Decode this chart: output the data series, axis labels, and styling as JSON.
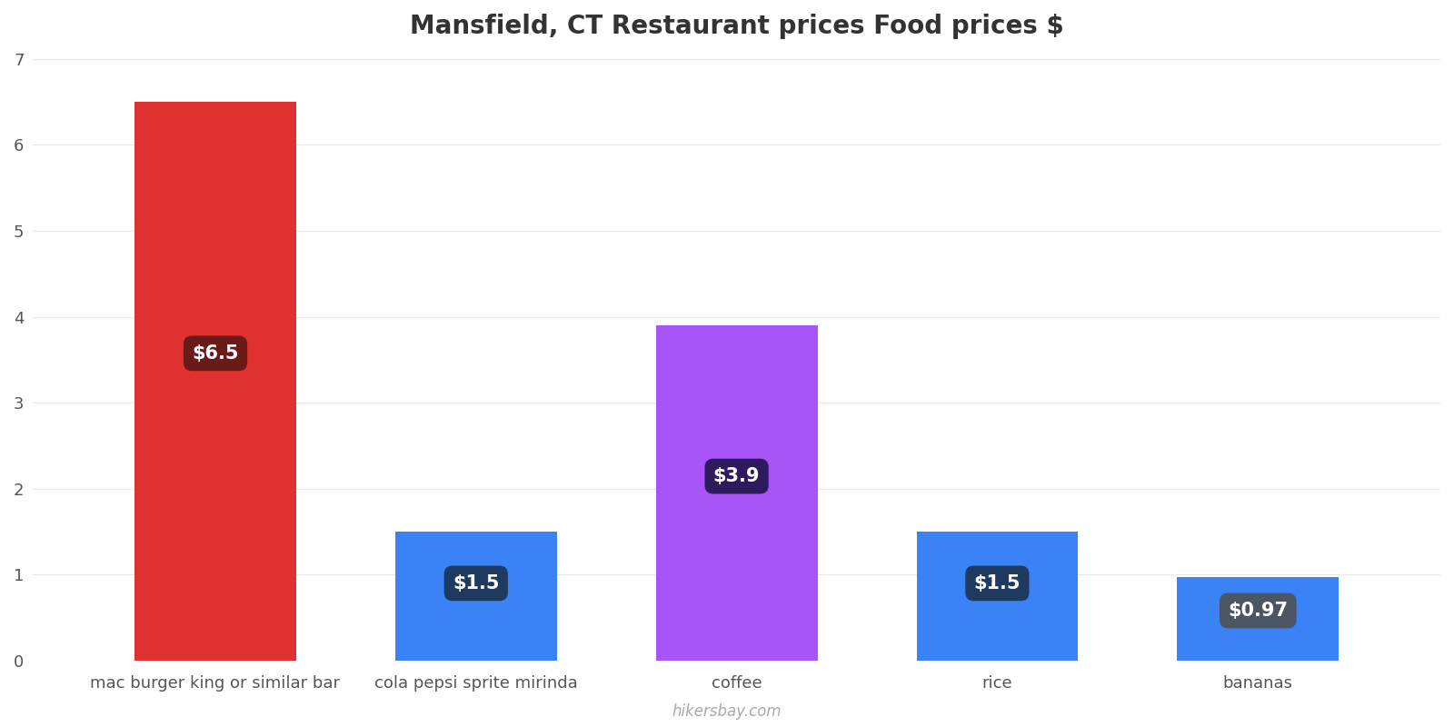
{
  "title": "Mansfield, CT Restaurant prices Food prices $",
  "categories": [
    "mac burger king or similar bar",
    "cola pepsi sprite mirinda",
    "coffee",
    "rice",
    "bananas"
  ],
  "values": [
    6.5,
    1.5,
    3.9,
    1.5,
    0.97
  ],
  "bar_colors": [
    "#e03131",
    "#3b82f6",
    "#a855f7",
    "#3b82f6",
    "#3b82f6"
  ],
  "label_texts": [
    "$6.5",
    "$1.5",
    "$3.9",
    "$1.5",
    "$0.97"
  ],
  "label_bg_colors": [
    "#6b1a1a",
    "#1e3a5f",
    "#2d1b5e",
    "#1e3a5f",
    "#4b5563"
  ],
  "ylim": [
    0,
    7
  ],
  "yticks": [
    0,
    1,
    2,
    3,
    4,
    5,
    6,
    7
  ],
  "background_color": "#ffffff",
  "grid_color": "#e5e7eb",
  "watermark": "hikersbay.com",
  "title_fontsize": 20,
  "tick_fontsize": 13,
  "label_fontsize": 15,
  "bar_width": 0.62
}
